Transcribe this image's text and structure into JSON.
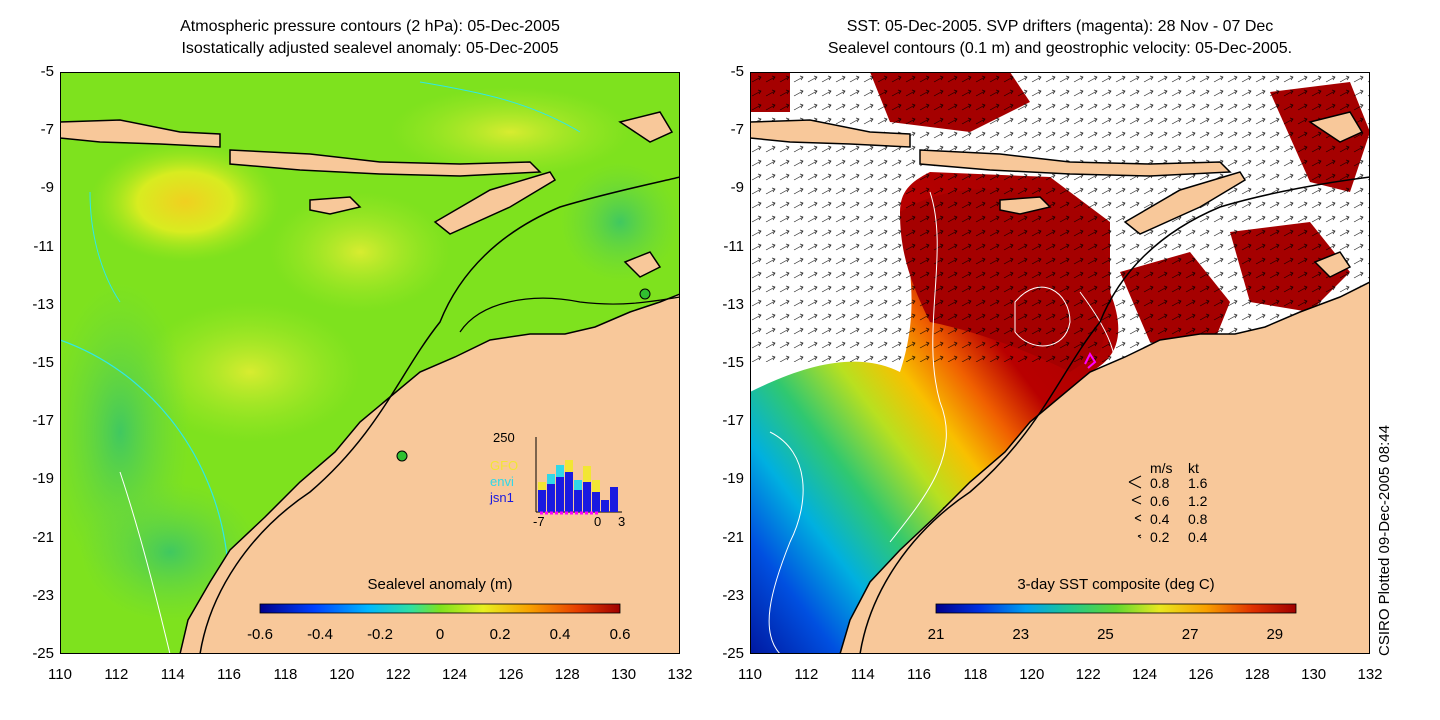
{
  "left_panel": {
    "title_line1": "Atmospheric pressure contours (2 hPa): 05-Dec-2005",
    "title_line2": "Isostatically adjusted sealevel anomaly: 05-Dec-2005",
    "colorbar": {
      "title": "Sealevel anomaly (m)",
      "ticks": [
        "-0.6",
        "-0.4",
        "-0.2",
        "0",
        "0.2",
        "0.4",
        "0.6"
      ],
      "range": [
        -0.6,
        0.6
      ]
    },
    "histogram": {
      "top_label": "250",
      "series_labels": [
        "GFO",
        "envi",
        "jsn1"
      ],
      "series_colors": [
        "#f2e634",
        "#30d8e8",
        "#1a1ae0"
      ],
      "x_ticks": [
        "-7",
        "0",
        "3"
      ]
    }
  },
  "right_panel": {
    "title_line1": "SST: 05-Dec-2005. SVP drifters (magenta): 28 Nov - 07 Dec",
    "title_line2": "Sealevel contours (0.1 m) and geostrophic velocity: 05-Dec-2005.",
    "colorbar": {
      "title": "3-day SST composite (deg C)",
      "ticks": [
        "21",
        "23",
        "25",
        "27",
        "29"
      ],
      "range": [
        21,
        29.5
      ]
    },
    "velocity_legend": {
      "header_ms": "m/s",
      "header_kt": "kt",
      "rows": [
        {
          "ms": "0.8",
          "kt": "1.6"
        },
        {
          "ms": "0.6",
          "kt": "1.2"
        },
        {
          "ms": "0.4",
          "kt": "0.8"
        },
        {
          "ms": "0.2",
          "kt": "0.4"
        }
      ]
    }
  },
  "axes": {
    "y_ticks": [
      "-5",
      "-7",
      "-9",
      "-11",
      "-13",
      "-15",
      "-17",
      "-19",
      "-21",
      "-23",
      "-25"
    ],
    "x_ticks": [
      "110",
      "112",
      "114",
      "116",
      "118",
      "120",
      "122",
      "124",
      "126",
      "128",
      "130",
      "132"
    ],
    "lon_range": [
      110,
      132
    ],
    "lat_range": [
      -25,
      -5
    ]
  },
  "credit": "CSIRO Plotted 09-Dec-2005 08:44",
  "colors": {
    "land": "#f8c89a",
    "coast": "#000000",
    "sla_ocean": "#7ee21e",
    "sst_hot": "#a50000"
  }
}
